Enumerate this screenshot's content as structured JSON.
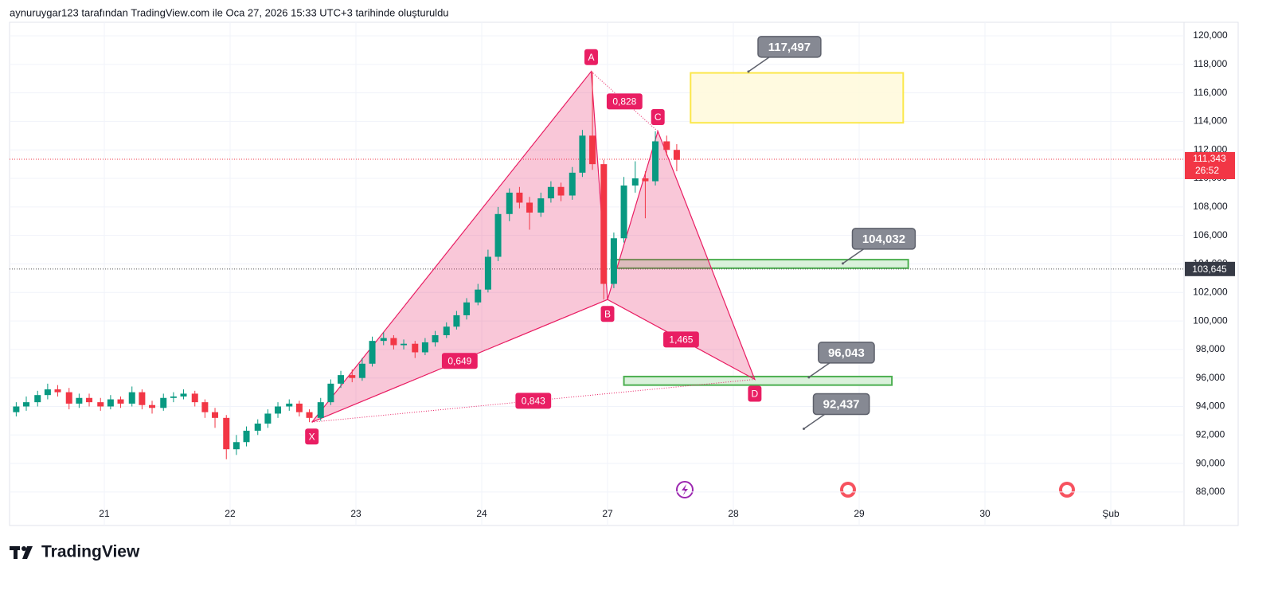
{
  "chart_data": {
    "type": "candlestick",
    "header": "aynuruygar123 tarafından TradingView.com ile Oca 27, 2026 15:33 UTC+3 tarihinde oluşturuldu",
    "logo": "TradingView",
    "xlim": [
      -0.753,
      8.582
    ],
    "xticks": [
      {
        "value": 0,
        "label": "21"
      },
      {
        "value": 1,
        "label": "22"
      },
      {
        "value": 2,
        "label": "23"
      },
      {
        "value": 3,
        "label": "24"
      },
      {
        "value": 4,
        "label": "27"
      },
      {
        "value": 5,
        "label": "28"
      },
      {
        "value": 6,
        "label": "29"
      },
      {
        "value": 7,
        "label": "30"
      },
      {
        "value": 8,
        "label": "Şub"
      }
    ],
    "ylim": [
      85650,
      120950
    ],
    "yticks": [
      {
        "value": 88000,
        "label": "88,000"
      },
      {
        "value": 90000,
        "label": "90,000"
      },
      {
        "value": 92000,
        "label": "92,000"
      },
      {
        "value": 94000,
        "label": "94,000"
      },
      {
        "value": 96000,
        "label": "96,000"
      },
      {
        "value": 98000,
        "label": "98,000"
      },
      {
        "value": 100000,
        "label": "100,000"
      },
      {
        "value": 102000,
        "label": "102,000"
      },
      {
        "value": 104000,
        "label": "104,000"
      },
      {
        "value": 106000,
        "label": "106,000"
      },
      {
        "value": 108000,
        "label": "108,000"
      },
      {
        "value": 110000,
        "label": "110,000"
      },
      {
        "value": 112000,
        "label": "112,000"
      },
      {
        "value": 114000,
        "label": "114,000"
      },
      {
        "value": 116000,
        "label": "116,000"
      },
      {
        "value": 118000,
        "label": "118,000"
      },
      {
        "value": 120000,
        "label": "120,000"
      }
    ],
    "grid": true,
    "up_color": "#089981",
    "down_color": "#f23645",
    "x": [
      -0.7,
      -0.62,
      -0.53,
      -0.45,
      -0.37,
      -0.28,
      -0.2,
      -0.12,
      -0.03,
      0.05,
      0.13,
      0.22,
      0.3,
      0.38,
      0.47,
      0.55,
      0.63,
      0.72,
      0.8,
      0.88,
      0.97,
      1.05,
      1.13,
      1.22,
      1.3,
      1.38,
      1.47,
      1.55,
      1.63,
      1.72,
      1.8,
      1.88,
      1.97,
      2.05,
      2.13,
      2.22,
      2.3,
      2.38,
      2.47,
      2.55,
      2.63,
      2.72,
      2.8,
      2.88,
      2.97,
      3.05,
      3.13,
      3.22,
      3.3,
      3.38,
      3.47,
      3.55,
      3.63,
      3.72,
      3.8,
      3.88,
      3.97,
      4.05,
      4.13,
      4.22,
      4.3,
      4.38,
      4.47,
      4.55
    ],
    "candles": [
      [
        93600,
        94300,
        93300,
        94000
      ],
      [
        94000,
        94700,
        93700,
        94300
      ],
      [
        94300,
        95100,
        94000,
        94800
      ],
      [
        94800,
        95600,
        94500,
        95200
      ],
      [
        95200,
        95500,
        94700,
        95000
      ],
      [
        95000,
        95300,
        93800,
        94200
      ],
      [
        94200,
        94900,
        93900,
        94600
      ],
      [
        94600,
        94900,
        94000,
        94300
      ],
      [
        94300,
        94600,
        93700,
        94000
      ],
      [
        94000,
        94800,
        93800,
        94500
      ],
      [
        94500,
        94700,
        93900,
        94200
      ],
      [
        94200,
        95400,
        94000,
        95000
      ],
      [
        95000,
        95200,
        93800,
        94100
      ],
      [
        94100,
        94400,
        93500,
        93900
      ],
      [
        93900,
        94900,
        93700,
        94600
      ],
      [
        94600,
        95000,
        94300,
        94700
      ],
      [
        94700,
        95200,
        94500,
        94900
      ],
      [
        94900,
        95100,
        94000,
        94300
      ],
      [
        94300,
        94500,
        93200,
        93600
      ],
      [
        93600,
        93900,
        92500,
        93200
      ],
      [
        93200,
        93400,
        90300,
        91000
      ],
      [
        91000,
        92000,
        90600,
        91500
      ],
      [
        91500,
        92600,
        91200,
        92300
      ],
      [
        92300,
        93100,
        92000,
        92800
      ],
      [
        92800,
        93800,
        92500,
        93500
      ],
      [
        93500,
        94300,
        93200,
        94000
      ],
      [
        94000,
        94500,
        93700,
        94200
      ],
      [
        94200,
        94400,
        93300,
        93600
      ],
      [
        93600,
        93800,
        92900,
        93200
      ],
      [
        93200,
        94600,
        93000,
        94300
      ],
      [
        94300,
        95900,
        94100,
        95600
      ],
      [
        95600,
        96500,
        95300,
        96200
      ],
      [
        96200,
        96600,
        95700,
        96000
      ],
      [
        96000,
        97400,
        95800,
        97000
      ],
      [
        97000,
        98900,
        96800,
        98600
      ],
      [
        98600,
        99200,
        98300,
        98800
      ],
      [
        98800,
        99000,
        98000,
        98300
      ],
      [
        98300,
        98700,
        98000,
        98400
      ],
      [
        98400,
        98600,
        97400,
        97800
      ],
      [
        97800,
        98800,
        97600,
        98500
      ],
      [
        98500,
        99300,
        98200,
        99000
      ],
      [
        99000,
        99900,
        98800,
        99600
      ],
      [
        99600,
        100700,
        99400,
        100400
      ],
      [
        100400,
        101600,
        100100,
        101300
      ],
      [
        101300,
        102600,
        101100,
        102200
      ],
      [
        102200,
        105000,
        102000,
        104500
      ],
      [
        104500,
        108000,
        104200,
        107500
      ],
      [
        107500,
        109300,
        107000,
        109000
      ],
      [
        109000,
        109400,
        107900,
        108300
      ],
      [
        108300,
        108700,
        106400,
        107600
      ],
      [
        107600,
        109000,
        107300,
        108600
      ],
      [
        108600,
        109800,
        108300,
        109400
      ],
      [
        109400,
        109700,
        108400,
        108800
      ],
      [
        108800,
        110800,
        108500,
        110400
      ],
      [
        110400,
        113400,
        110100,
        113000
      ],
      [
        113000,
        117500,
        110600,
        111000
      ],
      [
        111000,
        111300,
        101500,
        102600
      ],
      [
        102600,
        106200,
        102300,
        105800
      ],
      [
        105800,
        110100,
        105500,
        109500
      ],
      [
        109500,
        111200,
        109000,
        110000
      ],
      [
        110000,
        110500,
        107200,
        109800
      ],
      [
        109800,
        113300,
        109500,
        112600
      ],
      [
        112600,
        113000,
        111600,
        112000
      ],
      [
        112000,
        112400,
        110500,
        111300
      ]
    ],
    "pattern": {
      "points": [
        {
          "label": "X",
          "x": 1.65,
          "y": 92900
        },
        {
          "label": "A",
          "x": 3.87,
          "y": 117500
        },
        {
          "label": "B",
          "x": 4.0,
          "y": 101500
        },
        {
          "label": "C",
          "x": 4.4,
          "y": 113300
        },
        {
          "label": "D",
          "x": 5.17,
          "y": 95900
        }
      ],
      "ratios": [
        {
          "value": 0.649,
          "label": "0,649"
        },
        {
          "value": 0.828,
          "label": "0,828"
        },
        {
          "value": 1.465,
          "label": "1,465"
        },
        {
          "value": 0.843,
          "label": "0,843"
        }
      ],
      "color": "#e91e63"
    },
    "zones": [
      {
        "x": [
          4.66,
          6.35
        ],
        "y": [
          113900,
          117400
        ],
        "fill": "#fff9db",
        "stroke": "#fbe74a"
      },
      {
        "x": [
          4.03,
          6.39
        ],
        "y": [
          103700,
          104300
        ],
        "fill": "#d4efd5",
        "stroke": "#4caf50"
      },
      {
        "x": [
          4.13,
          6.26
        ],
        "y": [
          95500,
          96100
        ],
        "fill": "#d4efd5",
        "stroke": "#4caf50"
      }
    ],
    "callouts": [
      {
        "value": 117497,
        "label": "117,497",
        "x": 5.12
      },
      {
        "value": 104032,
        "label": "104,032",
        "x": 5.87
      },
      {
        "value": 96043,
        "label": "96,043",
        "x": 5.6
      },
      {
        "value": 92437,
        "label": "92,437",
        "x": 5.56
      }
    ],
    "current_price": {
      "value": 111343,
      "label": "111,343",
      "countdown": "26:52"
    },
    "level": {
      "value": 103645,
      "label": "103,645"
    }
  }
}
